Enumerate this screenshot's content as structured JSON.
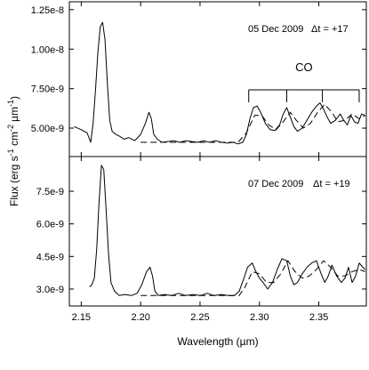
{
  "chart_data": {
    "type": "line",
    "xlabel": "Wavelength (µm)",
    "ylabel_parts": {
      "a": "Flux (erg s",
      "e1": "-1",
      "b": " cm",
      "e2": "-2",
      "c": "µm",
      "e3": "-1",
      "d": ")"
    },
    "xlim": [
      2.14,
      2.39
    ],
    "x_ticks": [
      2.15,
      2.2,
      2.25,
      2.3,
      2.35
    ],
    "x_tick_labels": [
      "2.15",
      "2.20",
      "2.25",
      "2.30",
      "2.35"
    ],
    "panels": [
      {
        "id": "top",
        "date_label": "05 Dec 2009",
        "dt_label": "Δt = +17",
        "band_label": "CO",
        "band_bracket": {
          "start": 2.291,
          "end": 2.384,
          "inner_ticks": [
            2.323,
            2.353
          ]
        },
        "ylim": [
          3.2e-09,
          1.3e-08
        ],
        "y_ticks": [
          5e-09,
          7.5e-09,
          1e-08,
          1.25e-08
        ],
        "y_tick_labels": [
          "5.00e-9",
          "7.50e-9",
          "1.00e-8",
          "1.25e-8"
        ],
        "series": [
          {
            "style": "solid",
            "x": [
              2.144,
              2.15,
              2.155,
              2.158,
              2.16,
              2.162,
              2.164,
              2.166,
              2.168,
              2.17,
              2.172,
              2.174,
              2.176,
              2.179,
              2.182,
              2.186,
              2.19,
              2.195,
              2.2,
              2.204,
              2.207,
              2.209,
              2.211,
              2.214,
              2.218,
              2.223,
              2.228,
              2.233,
              2.238,
              2.243,
              2.248,
              2.253,
              2.258,
              2.263,
              2.268,
              2.273,
              2.278,
              2.282,
              2.286,
              2.289,
              2.292,
              2.295,
              2.298,
              2.301,
              2.305,
              2.309,
              2.313,
              2.317,
              2.32,
              2.323,
              2.326,
              2.329,
              2.332,
              2.336,
              2.34,
              2.344,
              2.348,
              2.351,
              2.354,
              2.357,
              2.36,
              2.364,
              2.368,
              2.371,
              2.374,
              2.377,
              2.38,
              2.383,
              2.386,
              2.389
            ],
            "y": [
              5.1e-09,
              4.9e-09,
              4.7e-09,
              4.1e-09,
              5.3e-09,
              7.4e-09,
              9.8e-09,
              1.14e-08,
              1.17e-08,
              1.06e-08,
              7.8e-09,
              5.5e-09,
              4.8e-09,
              4.6e-09,
              4.5e-09,
              4.3e-09,
              4.4e-09,
              4.2e-09,
              4.6e-09,
              5.3e-09,
              6e-09,
              5.6e-09,
              4.6e-09,
              4.3e-09,
              4.1e-09,
              4.15e-09,
              4.2e-09,
              4.1e-09,
              4.2e-09,
              4.15e-09,
              4.1e-09,
              4.2e-09,
              4.1e-09,
              4.2e-09,
              4.1e-09,
              4.05e-09,
              4.1e-09,
              4e-09,
              4.1e-09,
              4.6e-09,
              5.6e-09,
              6.3e-09,
              6.4e-09,
              6e-09,
              5.3e-09,
              4.9e-09,
              4.85e-09,
              5.2e-09,
              5.9e-09,
              6.3e-09,
              5.7e-09,
              5.1e-09,
              4.8e-09,
              5e-09,
              5.5e-09,
              6e-09,
              6.4e-09,
              6.6e-09,
              6.2e-09,
              5.7e-09,
              5.3e-09,
              5.5e-09,
              5.9e-09,
              5.5e-09,
              5.2e-09,
              5.8e-09,
              5.4e-09,
              5.3e-09,
              5.9e-09,
              5.8e-09
            ]
          },
          {
            "style": "dashed",
            "x": [
              2.2,
              2.24,
              2.282,
              2.289,
              2.296,
              2.302,
              2.308,
              2.314,
              2.32,
              2.326,
              2.331,
              2.337,
              2.343,
              2.349,
              2.355,
              2.361,
              2.366,
              2.372,
              2.378,
              2.384,
              2.389
            ],
            "y": [
              4.1e-09,
              4.1e-09,
              4.1e-09,
              4.7e-09,
              5.8e-09,
              5.8e-09,
              5.2e-09,
              4.9e-09,
              5.4e-09,
              6e-09,
              5.5e-09,
              5e-09,
              5.3e-09,
              6e-09,
              6.5e-09,
              6e-09,
              5.4e-09,
              5.5e-09,
              5.9e-09,
              5.6e-09,
              5.8e-09
            ]
          }
        ]
      },
      {
        "id": "bottom",
        "date_label": "07 Dec 2009",
        "dt_label": "Δt = +19",
        "ylim": [
          2.22e-09,
          9.1e-09
        ],
        "y_ticks": [
          3e-09,
          4.5e-09,
          6e-09,
          7.5e-09
        ],
        "y_tick_labels": [
          "3.0e-9",
          "4.5e-9",
          "6.0e-9",
          "7.5e-9"
        ],
        "series": [
          {
            "style": "solid",
            "x": [
              2.157,
              2.159,
              2.161,
              2.163,
              2.165,
              2.167,
              2.169,
              2.171,
              2.173,
              2.175,
              2.178,
              2.182,
              2.187,
              2.192,
              2.197,
              2.201,
              2.205,
              2.208,
              2.21,
              2.212,
              2.215,
              2.22,
              2.226,
              2.232,
              2.238,
              2.244,
              2.25,
              2.256,
              2.262,
              2.268,
              2.274,
              2.279,
              2.283,
              2.287,
              2.29,
              2.294,
              2.297,
              2.3,
              2.303,
              2.307,
              2.311,
              2.315,
              2.319,
              2.323,
              2.326,
              2.329,
              2.332,
              2.336,
              2.34,
              2.344,
              2.348,
              2.352,
              2.355,
              2.358,
              2.361,
              2.365,
              2.369,
              2.372,
              2.375,
              2.378,
              2.381,
              2.384,
              2.387,
              2.389
            ],
            "y": [
              3.1e-09,
              3.2e-09,
              3.5e-09,
              4.8e-09,
              7e-09,
              8.7e-09,
              8.5e-09,
              6.6e-09,
              4.6e-09,
              3.3e-09,
              2.9e-09,
              2.7e-09,
              2.75e-09,
              2.7e-09,
              2.8e-09,
              3.2e-09,
              3.8e-09,
              4e-09,
              3.6e-09,
              2.9e-09,
              2.7e-09,
              2.75e-09,
              2.7e-09,
              2.8e-09,
              2.7e-09,
              2.75e-09,
              2.7e-09,
              2.8e-09,
              2.7e-09,
              2.75e-09,
              2.7e-09,
              2.7e-09,
              2.9e-09,
              3.5e-09,
              4e-09,
              4.2e-09,
              3.8e-09,
              3.5e-09,
              3.3e-09,
              3e-09,
              3.3e-09,
              3.9e-09,
              4.4e-09,
              4.3e-09,
              3.6e-09,
              3.2e-09,
              3.3e-09,
              3.7e-09,
              4e-09,
              4.2e-09,
              4.3e-09,
              3.7e-09,
              3.3e-09,
              3.6e-09,
              4.1e-09,
              3.6e-09,
              3.3e-09,
              3.5e-09,
              4e-09,
              3.3e-09,
              3.6e-09,
              4.2e-09,
              4e-09,
              3.9e-09
            ]
          },
          {
            "style": "dashed",
            "x": [
              2.2,
              2.24,
              2.283,
              2.288,
              2.294,
              2.3,
              2.306,
              2.312,
              2.318,
              2.324,
              2.33,
              2.336,
              2.342,
              2.348,
              2.354,
              2.36,
              2.366,
              2.372,
              2.378,
              2.384,
              2.389
            ],
            "y": [
              2.7e-09,
              2.7e-09,
              2.7e-09,
              3.1e-09,
              3.8e-09,
              3.7e-09,
              3.3e-09,
              3.3e-09,
              3.7e-09,
              4.3e-09,
              3.8e-09,
              3.5e-09,
              3.6e-09,
              3.9e-09,
              4.3e-09,
              4e-09,
              3.6e-09,
              3.6e-09,
              3.8e-09,
              3.9e-09,
              3.8e-09
            ]
          }
        ]
      }
    ]
  }
}
